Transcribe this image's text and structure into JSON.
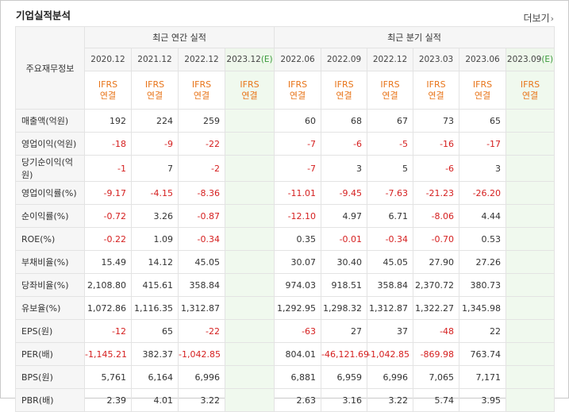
{
  "header": {
    "title": "기업실적분석",
    "more_label": "더보기"
  },
  "table": {
    "item_header": "주요재무정보",
    "groups": {
      "annual": "최근 연간 실적",
      "quarterly": "최근 분기 실적"
    },
    "periods": [
      "2020.12",
      "2021.12",
      "2022.12",
      "2023.12",
      "2022.06",
      "2022.09",
      "2022.12",
      "2023.03",
      "2023.06",
      "2023.09"
    ],
    "estimate_mark": "(E)",
    "ifrs_line1": "IFRS",
    "ifrs_line2": "연결",
    "rows": [
      {
        "label": "매출액(억원)",
        "values": [
          "192",
          "224",
          "259",
          "",
          "60",
          "68",
          "67",
          "73",
          "65",
          ""
        ]
      },
      {
        "label": "영업이익(억원)",
        "values": [
          "-18",
          "-9",
          "-22",
          "",
          "-7",
          "-6",
          "-5",
          "-16",
          "-17",
          ""
        ]
      },
      {
        "label": "당기순이익(억원)",
        "values": [
          "-1",
          "7",
          "-2",
          "",
          "-7",
          "3",
          "5",
          "-6",
          "3",
          ""
        ]
      },
      {
        "label": "영업이익률(%)",
        "values": [
          "-9.17",
          "-4.15",
          "-8.36",
          "",
          "-11.01",
          "-9.45",
          "-7.63",
          "-21.23",
          "-26.20",
          ""
        ]
      },
      {
        "label": "순이익률(%)",
        "values": [
          "-0.72",
          "3.26",
          "-0.87",
          "",
          "-12.10",
          "4.97",
          "6.71",
          "-8.06",
          "4.44",
          ""
        ]
      },
      {
        "label": "ROE(%)",
        "values": [
          "-0.22",
          "1.09",
          "-0.34",
          "",
          "0.35",
          "-0.01",
          "-0.34",
          "-0.70",
          "0.53",
          ""
        ]
      },
      {
        "label": "부채비율(%)",
        "values": [
          "15.49",
          "14.12",
          "45.05",
          "",
          "30.07",
          "30.40",
          "45.05",
          "27.90",
          "27.26",
          ""
        ]
      },
      {
        "label": "당좌비율(%)",
        "values": [
          "2,108.80",
          "415.61",
          "358.84",
          "",
          "974.03",
          "918.51",
          "358.84",
          "2,370.72",
          "380.73",
          ""
        ]
      },
      {
        "label": "유보율(%)",
        "values": [
          "1,072.86",
          "1,116.35",
          "1,312.87",
          "",
          "1,292.95",
          "1,298.32",
          "1,312.87",
          "1,322.27",
          "1,345.98",
          ""
        ]
      },
      {
        "label": "EPS(원)",
        "values": [
          "-12",
          "65",
          "-22",
          "",
          "-63",
          "27",
          "37",
          "-48",
          "22",
          ""
        ]
      },
      {
        "label": "PER(배)",
        "values": [
          "-1,145.21",
          "382.37",
          "-1,042.85",
          "",
          "804.01",
          "-46,121.69",
          "-1,042.85",
          "-869.98",
          "763.74",
          ""
        ]
      },
      {
        "label": "BPS(원)",
        "values": [
          "5,761",
          "6,164",
          "6,996",
          "",
          "6,881",
          "6,959",
          "6,996",
          "7,065",
          "7,171",
          ""
        ]
      },
      {
        "label": "PBR(배)",
        "values": [
          "2.39",
          "4.01",
          "3.22",
          "",
          "2.63",
          "3.16",
          "3.22",
          "5.74",
          "3.95",
          ""
        ]
      }
    ]
  },
  "colors": {
    "negative": "#d51f1f",
    "ifrs": "#e8751a",
    "estimate_bg": "#f0f9ee",
    "estimate_mark": "#3a9a3a",
    "header_bg": "#f6f6f6"
  }
}
